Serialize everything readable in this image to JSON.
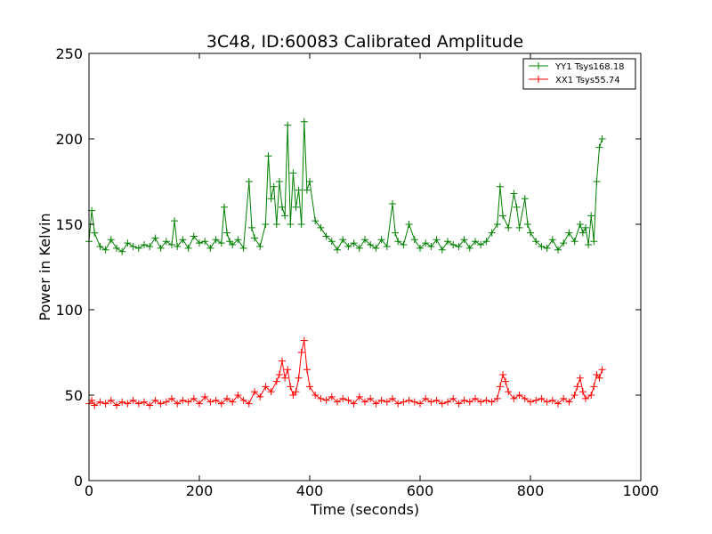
{
  "chart_data": {
    "type": "line",
    "title": "3C48, ID:60083 Calibrated Amplitude",
    "xlabel": "Time (seconds)",
    "ylabel": "Power in Kelvin",
    "xlim": [
      0,
      1000
    ],
    "ylim": [
      0,
      250
    ],
    "xticks": [
      "0",
      "200",
      "400",
      "600",
      "800",
      "1000"
    ],
    "yticks": [
      "0",
      "50",
      "100",
      "150",
      "200",
      "250"
    ],
    "grid": false,
    "legend_position": "top-right",
    "marker": "+",
    "series": [
      {
        "name": "YY1 Tsys168.18",
        "color": "#008000",
        "x": [
          0,
          5,
          10,
          20,
          30,
          40,
          50,
          60,
          70,
          80,
          90,
          100,
          110,
          120,
          130,
          140,
          150,
          155,
          160,
          170,
          180,
          190,
          200,
          210,
          220,
          230,
          240,
          245,
          250,
          255,
          260,
          270,
          280,
          290,
          295,
          300,
          310,
          320,
          325,
          330,
          335,
          340,
          345,
          350,
          355,
          360,
          365,
          370,
          375,
          380,
          385,
          390,
          395,
          400,
          410,
          420,
          430,
          440,
          450,
          460,
          470,
          480,
          490,
          500,
          510,
          520,
          530,
          540,
          550,
          555,
          560,
          570,
          580,
          590,
          600,
          610,
          620,
          630,
          640,
          650,
          660,
          670,
          680,
          690,
          700,
          710,
          720,
          730,
          740,
          745,
          750,
          760,
          770,
          775,
          780,
          790,
          795,
          800,
          810,
          820,
          830,
          840,
          850,
          860,
          870,
          880,
          890,
          895,
          900,
          905,
          910,
          915,
          920,
          925,
          930
        ],
        "y": [
          140,
          158,
          145,
          137,
          135,
          141,
          136,
          134,
          139,
          137,
          136,
          138,
          137,
          142,
          136,
          140,
          138,
          152,
          137,
          141,
          136,
          143,
          139,
          140,
          136,
          141,
          139,
          160,
          145,
          140,
          138,
          141,
          136,
          175,
          148,
          142,
          137,
          150,
          190,
          165,
          172,
          150,
          175,
          160,
          155,
          208,
          150,
          180,
          160,
          170,
          150,
          210,
          170,
          175,
          152,
          148,
          143,
          140,
          135,
          141,
          137,
          139,
          136,
          141,
          138,
          136,
          141,
          137,
          162,
          145,
          140,
          138,
          150,
          141,
          136,
          139,
          137,
          141,
          135,
          140,
          138,
          137,
          141,
          136,
          140,
          138,
          140,
          145,
          150,
          172,
          155,
          148,
          168,
          160,
          148,
          165,
          150,
          145,
          140,
          137,
          136,
          141,
          135,
          139,
          145,
          140,
          150,
          145,
          148,
          138,
          155,
          140,
          175,
          195,
          200
        ]
      },
      {
        "name": "XX1 Tsys55.74",
        "color": "#ff0000",
        "x": [
          0,
          5,
          10,
          20,
          30,
          40,
          50,
          60,
          70,
          80,
          90,
          100,
          110,
          120,
          130,
          140,
          150,
          160,
          170,
          180,
          190,
          200,
          210,
          220,
          230,
          240,
          250,
          260,
          270,
          280,
          290,
          300,
          310,
          320,
          330,
          340,
          345,
          350,
          355,
          360,
          365,
          370,
          375,
          380,
          385,
          390,
          395,
          400,
          410,
          420,
          430,
          440,
          450,
          460,
          470,
          480,
          490,
          500,
          510,
          520,
          530,
          540,
          550,
          560,
          570,
          580,
          590,
          600,
          610,
          620,
          630,
          640,
          650,
          660,
          670,
          680,
          690,
          700,
          710,
          720,
          730,
          740,
          745,
          750,
          755,
          760,
          770,
          780,
          790,
          800,
          810,
          820,
          830,
          840,
          850,
          860,
          870,
          880,
          885,
          890,
          895,
          900,
          910,
          915,
          920,
          925,
          930
        ],
        "y": [
          45,
          47,
          44,
          46,
          45,
          47,
          44,
          46,
          45,
          47,
          45,
          46,
          44,
          47,
          45,
          46,
          48,
          45,
          47,
          46,
          48,
          45,
          49,
          46,
          47,
          45,
          48,
          46,
          50,
          47,
          45,
          52,
          49,
          55,
          52,
          58,
          62,
          70,
          60,
          65,
          55,
          50,
          52,
          60,
          75,
          82,
          65,
          55,
          50,
          48,
          47,
          49,
          46,
          48,
          47,
          45,
          49,
          46,
          48,
          45,
          47,
          46,
          48,
          45,
          46,
          47,
          46,
          45,
          48,
          46,
          47,
          45,
          46,
          48,
          45,
          47,
          46,
          48,
          46,
          47,
          46,
          48,
          55,
          62,
          58,
          52,
          48,
          50,
          48,
          46,
          47,
          48,
          46,
          47,
          45,
          48,
          46,
          50,
          55,
          60,
          52,
          48,
          50,
          55,
          62,
          60,
          65
        ]
      }
    ]
  }
}
